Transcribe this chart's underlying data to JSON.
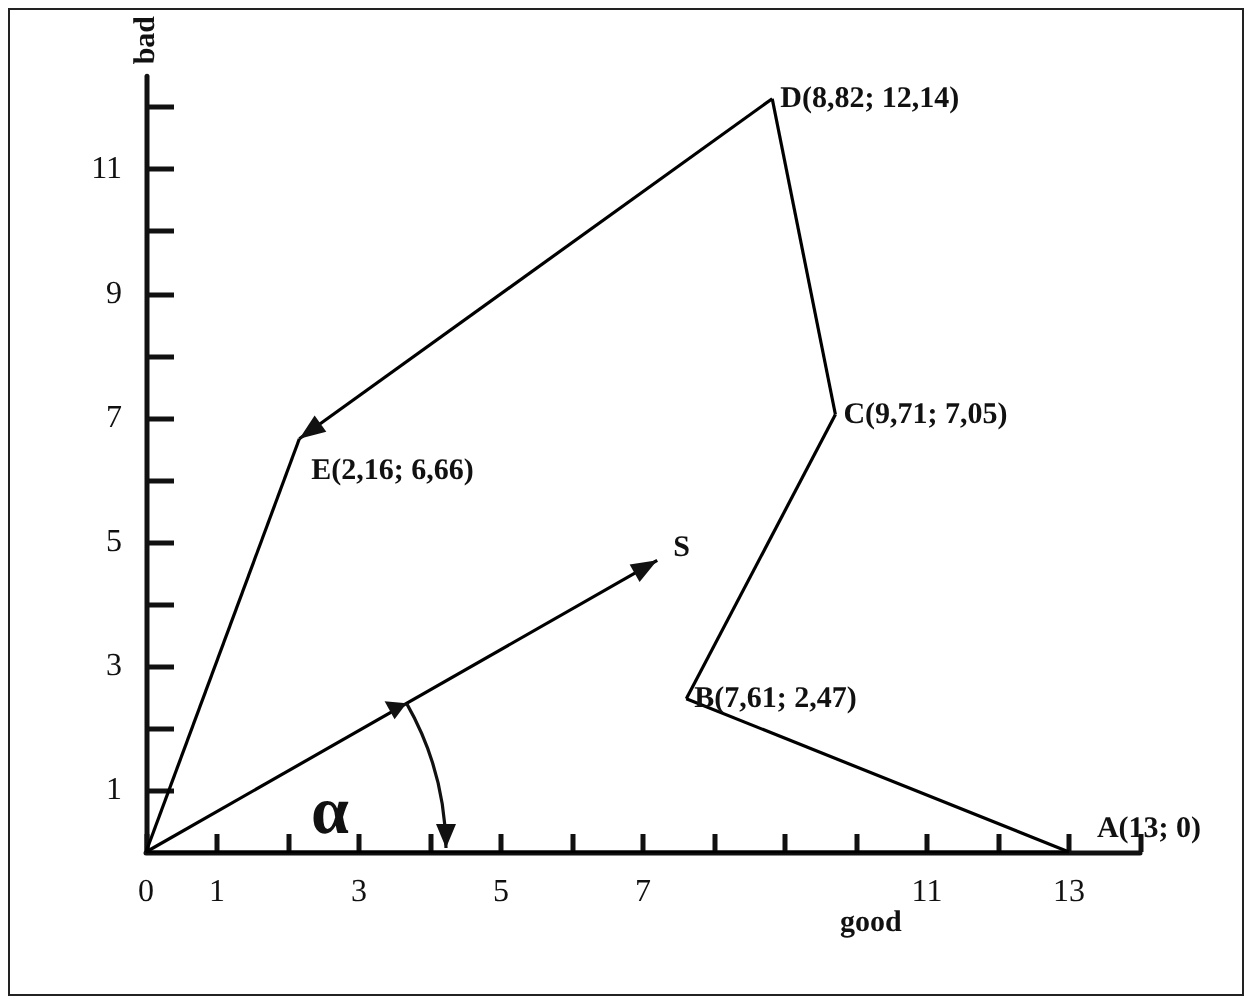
{
  "chart_data": {
    "type": "line",
    "xlabel": "good",
    "ylabel": "bad",
    "xlim": [
      0,
      14
    ],
    "ylim": [
      0,
      12.5
    ],
    "xticks": [
      {
        "value": 0,
        "label": "0"
      },
      {
        "value": 1,
        "label": "1"
      },
      {
        "value": 2,
        "label": null
      },
      {
        "value": 3,
        "label": "3"
      },
      {
        "value": 4,
        "label": null
      },
      {
        "value": 5,
        "label": "5"
      },
      {
        "value": 6,
        "label": null
      },
      {
        "value": 7,
        "label": "7"
      },
      {
        "value": 8,
        "label": null
      },
      {
        "value": 9,
        "label": null
      },
      {
        "value": 10,
        "label": null
      },
      {
        "value": 11,
        "label": "11"
      },
      {
        "value": 12,
        "label": null
      },
      {
        "value": 13,
        "label": "13"
      },
      {
        "value": 14,
        "label": null
      }
    ],
    "yticks": [
      {
        "value": 1,
        "label": "1"
      },
      {
        "value": 2,
        "label": null
      },
      {
        "value": 3,
        "label": "3"
      },
      {
        "value": 4,
        "label": null
      },
      {
        "value": 5,
        "label": "5"
      },
      {
        "value": 6,
        "label": null
      },
      {
        "value": 7,
        "label": "7"
      },
      {
        "value": 8,
        "label": null
      },
      {
        "value": 9,
        "label": "9"
      },
      {
        "value": 10,
        "label": null
      },
      {
        "value": 11,
        "label": "11"
      },
      {
        "value": 12,
        "label": null
      }
    ],
    "series": [
      {
        "color": "#000000",
        "x": [
          0,
          13
        ],
        "values": [
          0,
          0
        ],
        "value_labels": [
          null,
          "A(13; 0)"
        ]
      },
      {
        "color": "#000000",
        "x": [
          13,
          7.61
        ],
        "values": [
          0,
          2.47
        ],
        "value_labels": [
          null,
          "B(7,61; 2,47)"
        ]
      },
      {
        "color": "#000000",
        "x": [
          7.61,
          9.71
        ],
        "values": [
          2.47,
          7.05
        ],
        "value_labels": [
          null,
          "C(9,71; 7,05)"
        ]
      },
      {
        "color": "#000000",
        "x": [
          9.71,
          8.82
        ],
        "values": [
          7.05,
          12.14
        ],
        "value_labels": [
          null,
          "D(8,82; 12,14)"
        ]
      },
      {
        "color": "#000000",
        "x": [
          8.82,
          2.16
        ],
        "values": [
          12.14,
          6.66
        ],
        "value_labels": [
          null,
          "E(2,16; 6,66)"
        ]
      },
      {
        "color": "#000000",
        "x": [
          2.16,
          0
        ],
        "values": [
          6.66,
          0
        ]
      },
      {
        "color": "#000000",
        "x": [
          0,
          7.2
        ],
        "values": [
          0,
          4.7
        ],
        "value_labels": [
          null,
          "S"
        ]
      }
    ],
    "annotations": [
      "α"
    ],
    "grid": false
  }
}
